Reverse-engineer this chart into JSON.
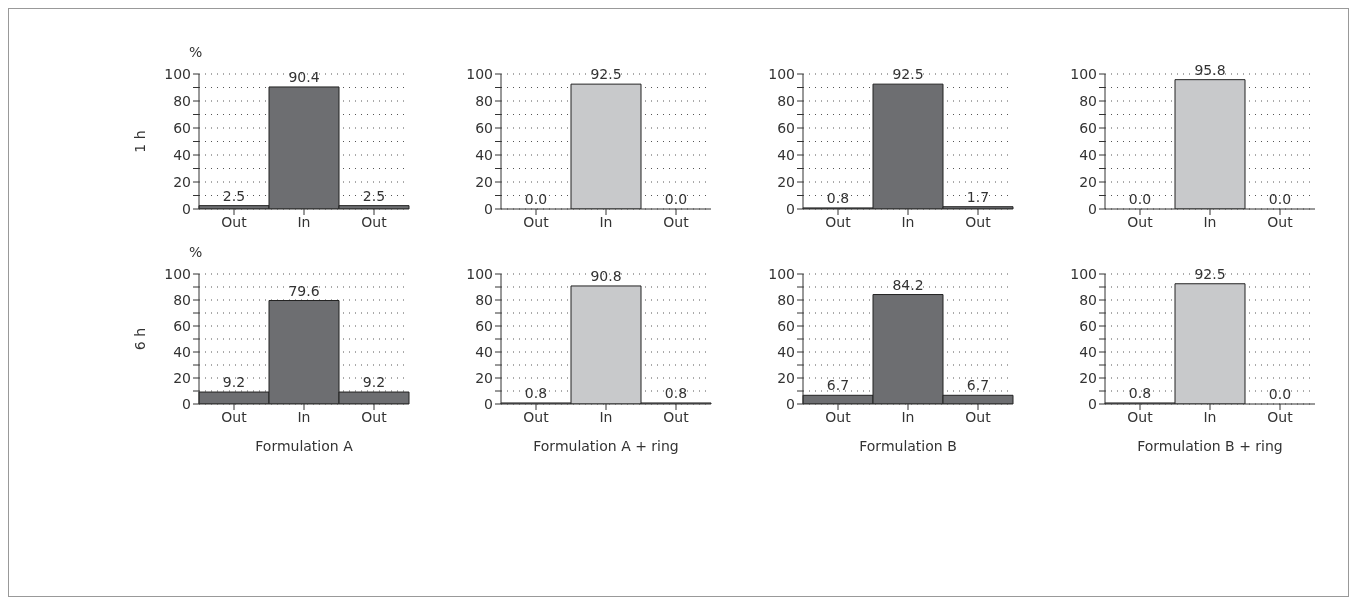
{
  "chart_data": [
    {
      "type": "bar",
      "ylabel": "1 h",
      "annotations": [
        "%"
      ],
      "categories": [
        "Out",
        "In",
        "Out"
      ],
      "series": [
        {
          "color": "#6d6e71",
          "values": [
            2.5,
            90.4,
            2.5
          ],
          "value_labels": [
            "2.5",
            "90.4",
            "2.5"
          ]
        }
      ],
      "ylim": [
        0,
        100
      ],
      "yticks": [
        0,
        {
          "value": 10,
          "label": null
        },
        20,
        {
          "value": 30,
          "label": null
        },
        40,
        {
          "value": 50,
          "label": null
        },
        60,
        {
          "value": 70,
          "label": null
        },
        80,
        {
          "value": 90,
          "label": null
        },
        100
      ],
      "grid": "y"
    },
    {
      "type": "bar",
      "categories": [
        "Out",
        "In",
        "Out"
      ],
      "series": [
        {
          "color": "#c8c9cb",
          "values": [
            0.0,
            92.5,
            0.0
          ],
          "value_labels": [
            "0.0",
            "92.5",
            "0.0"
          ]
        }
      ],
      "ylim": [
        0,
        100
      ],
      "yticks": [
        0,
        {
          "value": 10,
          "label": null
        },
        20,
        {
          "value": 30,
          "label": null
        },
        40,
        {
          "value": 50,
          "label": null
        },
        60,
        {
          "value": 70,
          "label": null
        },
        80,
        {
          "value": 90,
          "label": null
        },
        100
      ],
      "grid": "y"
    },
    {
      "type": "bar",
      "categories": [
        "Out",
        "In",
        "Out"
      ],
      "series": [
        {
          "color": "#6d6e71",
          "values": [
            0.8,
            92.5,
            1.7
          ],
          "value_labels": [
            "0.8",
            "92.5",
            "1.7"
          ]
        }
      ],
      "ylim": [
        0,
        100
      ],
      "yticks": [
        0,
        {
          "value": 10,
          "label": null
        },
        20,
        {
          "value": 30,
          "label": null
        },
        40,
        {
          "value": 50,
          "label": null
        },
        60,
        {
          "value": 70,
          "label": null
        },
        80,
        {
          "value": 90,
          "label": null
        },
        100
      ],
      "grid": "y"
    },
    {
      "type": "bar",
      "categories": [
        "Out",
        "In",
        "Out"
      ],
      "series": [
        {
          "color": "#c8c9cb",
          "values": [
            0.0,
            95.8,
            0.0
          ],
          "value_labels": [
            "0.0",
            "95.8",
            "0.0"
          ]
        }
      ],
      "ylim": [
        0,
        100
      ],
      "yticks": [
        0,
        {
          "value": 10,
          "label": null
        },
        20,
        {
          "value": 30,
          "label": null
        },
        40,
        {
          "value": 50,
          "label": null
        },
        60,
        {
          "value": 70,
          "label": null
        },
        80,
        {
          "value": 90,
          "label": null
        },
        100
      ],
      "grid": "y"
    },
    {
      "type": "bar",
      "ylabel": "6 h",
      "xlabel": "Formulation A",
      "annotations": [
        "%"
      ],
      "categories": [
        "Out",
        "In",
        "Out"
      ],
      "series": [
        {
          "color": "#6d6e71",
          "values": [
            9.2,
            79.6,
            9.2
          ],
          "value_labels": [
            "9.2",
            "79.6",
            "9.2"
          ]
        }
      ],
      "ylim": [
        0,
        100
      ],
      "yticks": [
        0,
        {
          "value": 10,
          "label": null
        },
        20,
        {
          "value": 30,
          "label": null
        },
        40,
        {
          "value": 50,
          "label": null
        },
        60,
        {
          "value": 70,
          "label": null
        },
        80,
        {
          "value": 90,
          "label": null
        },
        100
      ],
      "grid": "y"
    },
    {
      "type": "bar",
      "xlabel": "Formulation A + ring",
      "categories": [
        "Out",
        "In",
        "Out"
      ],
      "series": [
        {
          "color": "#c8c9cb",
          "values": [
            0.8,
            90.8,
            0.8
          ],
          "value_labels": [
            "0.8",
            "90.8",
            "0.8"
          ]
        }
      ],
      "ylim": [
        0,
        100
      ],
      "yticks": [
        0,
        {
          "value": 10,
          "label": null
        },
        20,
        {
          "value": 30,
          "label": null
        },
        40,
        {
          "value": 50,
          "label": null
        },
        60,
        {
          "value": 70,
          "label": null
        },
        80,
        {
          "value": 90,
          "label": null
        },
        100
      ],
      "grid": "y"
    },
    {
      "type": "bar",
      "xlabel": "Formulation B",
      "categories": [
        "Out",
        "In",
        "Out"
      ],
      "series": [
        {
          "color": "#6d6e71",
          "values": [
            6.7,
            84.2,
            6.7
          ],
          "value_labels": [
            "6.7",
            "84.2",
            "6.7"
          ]
        }
      ],
      "ylim": [
        0,
        100
      ],
      "yticks": [
        0,
        {
          "value": 10,
          "label": null
        },
        20,
        {
          "value": 30,
          "label": null
        },
        40,
        {
          "value": 50,
          "label": null
        },
        60,
        {
          "value": 70,
          "label": null
        },
        80,
        {
          "value": 90,
          "label": null
        },
        100
      ],
      "grid": "y"
    },
    {
      "type": "bar",
      "xlabel": "Formulation B + ring",
      "categories": [
        "Out",
        "In",
        "Out"
      ],
      "series": [
        {
          "color": "#c8c9cb",
          "values": [
            0.8,
            92.5,
            0.0
          ],
          "value_labels": [
            "0.8",
            "92.5",
            "0.0"
          ]
        }
      ],
      "ylim": [
        0,
        100
      ],
      "yticks": [
        0,
        {
          "value": 10,
          "label": null
        },
        20,
        {
          "value": 30,
          "label": null
        },
        40,
        {
          "value": 50,
          "label": null
        },
        60,
        {
          "value": 70,
          "label": null
        },
        80,
        {
          "value": 90,
          "label": null
        },
        100
      ],
      "grid": "y"
    }
  ]
}
